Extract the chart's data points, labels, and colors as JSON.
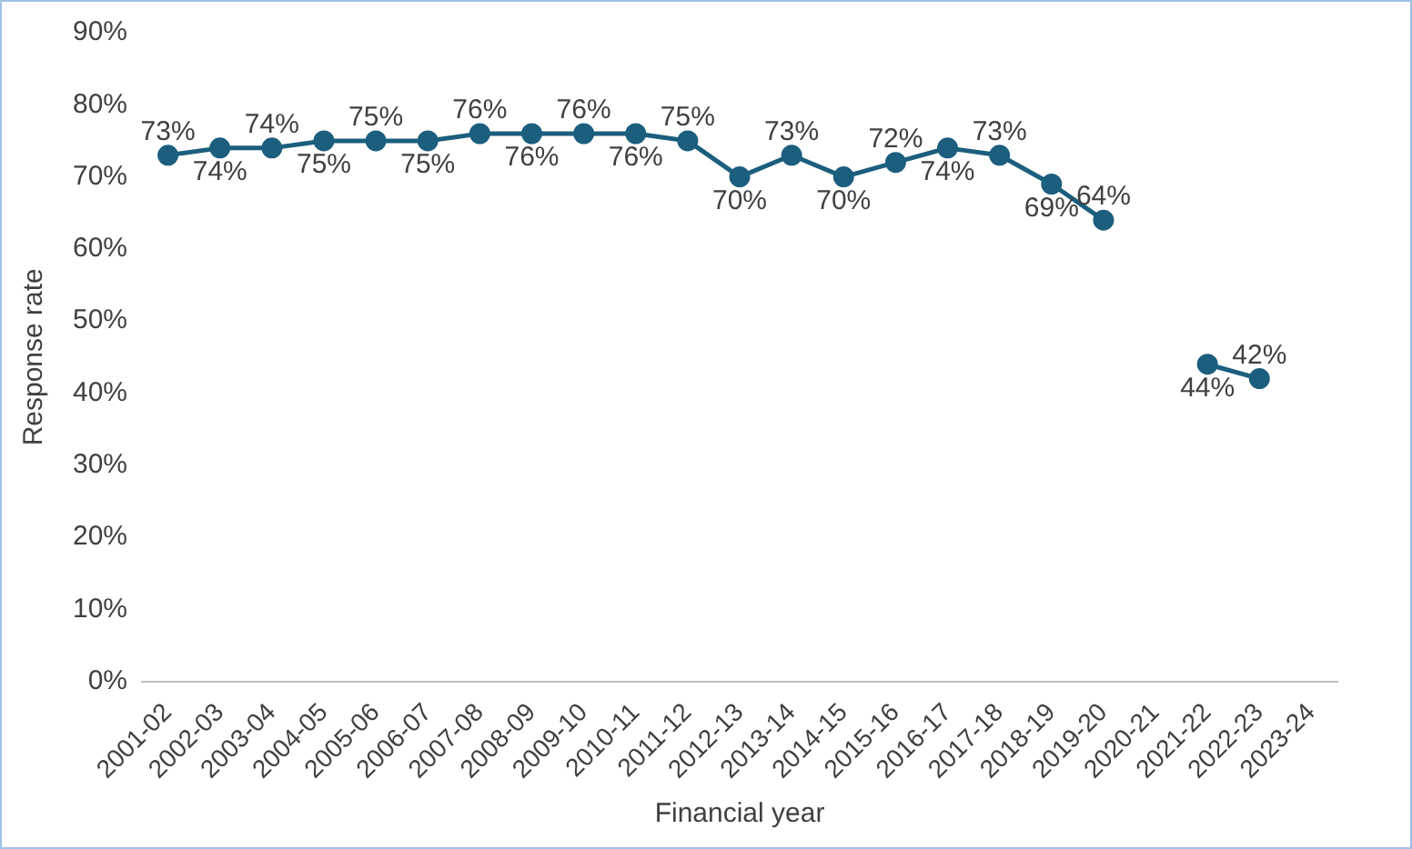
{
  "chart_data": {
    "type": "line",
    "xlabel": "Financial year",
    "ylabel": "Response rate",
    "categories": [
      "2001-02",
      "2002-03",
      "2003-04",
      "2004-05",
      "2005-06",
      "2006-07",
      "2007-08",
      "2008-09",
      "2009-10",
      "2010-11",
      "2011-12",
      "2012-13",
      "2013-14",
      "2014-15",
      "2015-16",
      "2016-17",
      "2017-18",
      "2018-19",
      "2019-20",
      "2020-21",
      "2021-22",
      "2022-23",
      "2023-24"
    ],
    "series": [
      {
        "color": "#1b5e7e",
        "values": [
          73,
          74,
          74,
          75,
          75,
          75,
          76,
          76,
          76,
          76,
          75,
          70,
          73,
          70,
          72,
          74,
          73,
          69,
          64,
          null,
          44,
          42,
          null
        ],
        "value_labels": [
          "73%",
          "74%",
          "74%",
          "75%",
          "75%",
          "75%",
          "76%",
          "76%",
          "76%",
          "76%",
          "75%",
          "70%",
          "73%",
          "70%",
          "72%",
          "74%",
          "73%",
          "69%",
          "64%",
          null,
          "44%",
          "42%",
          null
        ]
      }
    ],
    "ylim": [
      0,
      90
    ],
    "yticks": [
      {
        "value": 0,
        "label": "0%"
      },
      {
        "value": 10,
        "label": "10%"
      },
      {
        "value": 20,
        "label": "20%"
      },
      {
        "value": 30,
        "label": "30%"
      },
      {
        "value": 40,
        "label": "40%"
      },
      {
        "value": 50,
        "label": "50%"
      },
      {
        "value": 60,
        "label": "60%"
      },
      {
        "value": 70,
        "label": "70%"
      },
      {
        "value": 80,
        "label": "80%"
      },
      {
        "value": 90,
        "label": "90%"
      }
    ],
    "grid": false,
    "legend": false,
    "marker": "circle",
    "line_style": "solid"
  }
}
